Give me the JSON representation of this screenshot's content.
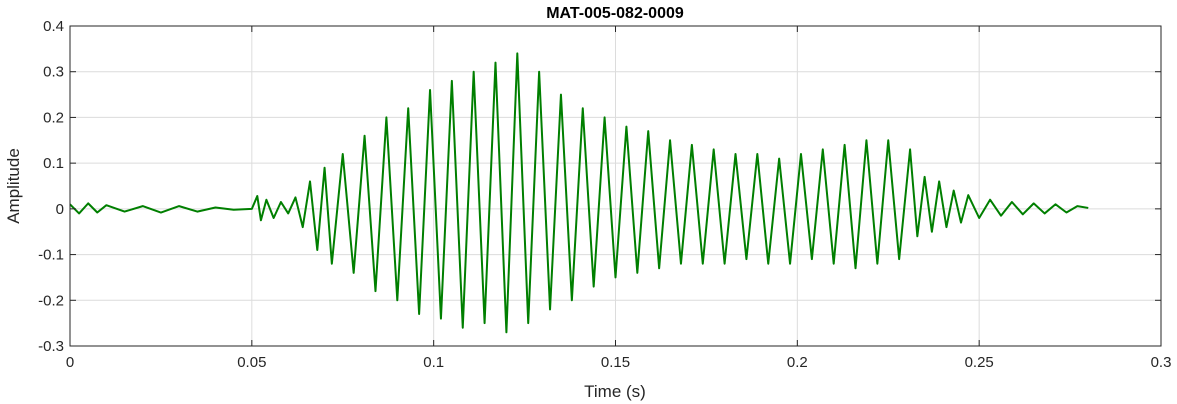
{
  "chart_data": {
    "type": "line",
    "title": "MAT-005-082-0009",
    "xlabel": "Time (s)",
    "ylabel": "Amplitude",
    "xlim": [
      0,
      0.3
    ],
    "ylim": [
      -0.3,
      0.4
    ],
    "xticks": [
      0,
      0.05,
      0.1,
      0.15,
      0.2,
      0.25,
      0.3
    ],
    "xtick_labels": [
      "0",
      "0.05",
      "0.1",
      "0.15",
      "0.2",
      "0.25",
      "0.3"
    ],
    "yticks": [
      -0.3,
      -0.2,
      -0.1,
      0,
      0.1,
      0.2,
      0.3,
      0.4
    ],
    "ytick_labels": [
      "-0.3",
      "-0.2",
      "-0.1",
      "0",
      "0.1",
      "0.2",
      "0.3",
      "0.4"
    ],
    "grid": true,
    "series": [
      {
        "color": "#007f00",
        "x": [
          0,
          0.0025,
          0.005,
          0.0075,
          0.01,
          0.015,
          0.02,
          0.025,
          0.03,
          0.035,
          0.04,
          0.045,
          0.05,
          0.0515,
          0.0525,
          0.054,
          0.056,
          0.058,
          0.06,
          0.062,
          0.064,
          0.066,
          0.068,
          0.07,
          0.072,
          0.075,
          0.078,
          0.081,
          0.084,
          0.087,
          0.09,
          0.093,
          0.096,
          0.099,
          0.102,
          0.105,
          0.108,
          0.111,
          0.114,
          0.117,
          0.12,
          0.123,
          0.126,
          0.129,
          0.132,
          0.135,
          0.138,
          0.141,
          0.144,
          0.147,
          0.15,
          0.153,
          0.156,
          0.159,
          0.162,
          0.165,
          0.168,
          0.171,
          0.174,
          0.177,
          0.18,
          0.183,
          0.186,
          0.189,
          0.192,
          0.195,
          0.198,
          0.201,
          0.204,
          0.207,
          0.21,
          0.213,
          0.216,
          0.219,
          0.222,
          0.225,
          0.228,
          0.231,
          0.233,
          0.235,
          0.237,
          0.239,
          0.241,
          0.243,
          0.245,
          0.247,
          0.25,
          0.253,
          0.256,
          0.259,
          0.262,
          0.265,
          0.268,
          0.271,
          0.274,
          0.277,
          0.28
        ],
        "y": [
          0.01,
          -0.01,
          0.012,
          -0.008,
          0.008,
          -0.006,
          0.006,
          -0.008,
          0.006,
          -0.006,
          0.003,
          -0.002,
          0.0,
          0.028,
          -0.025,
          0.02,
          -0.02,
          0.015,
          -0.01,
          0.025,
          -0.04,
          0.06,
          -0.09,
          0.09,
          -0.12,
          0.12,
          -0.14,
          0.16,
          -0.18,
          0.2,
          -0.2,
          0.22,
          -0.23,
          0.26,
          -0.24,
          0.28,
          -0.26,
          0.3,
          -0.25,
          0.32,
          -0.27,
          0.34,
          -0.25,
          0.3,
          -0.22,
          0.25,
          -0.2,
          0.22,
          -0.17,
          0.2,
          -0.15,
          0.18,
          -0.14,
          0.17,
          -0.13,
          0.15,
          -0.12,
          0.14,
          -0.12,
          0.13,
          -0.12,
          0.12,
          -0.11,
          0.12,
          -0.12,
          0.11,
          -0.12,
          0.12,
          -0.11,
          0.13,
          -0.12,
          0.14,
          -0.13,
          0.15,
          -0.12,
          0.15,
          -0.11,
          0.13,
          -0.06,
          0.07,
          -0.05,
          0.06,
          -0.04,
          0.04,
          -0.03,
          0.03,
          -0.02,
          0.02,
          -0.015,
          0.015,
          -0.012,
          0.012,
          -0.01,
          0.01,
          -0.008,
          0.006,
          0.002
        ]
      }
    ]
  }
}
